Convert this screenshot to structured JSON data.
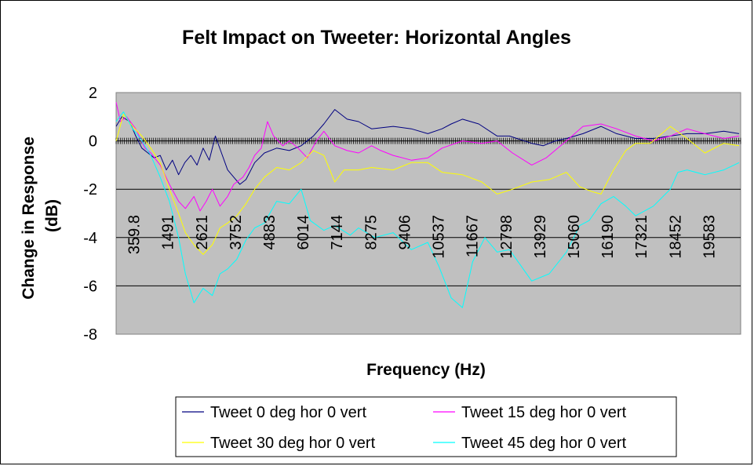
{
  "chart_data": {
    "type": "line",
    "title": "Felt Impact on Tweeter: Horizontal Angles",
    "xlabel": "Frequency (Hz)",
    "ylabel_line1": "Change in Response",
    "ylabel_line2": "(dB)",
    "ylim": [
      -8,
      2
    ],
    "yticks": [
      "2",
      "0",
      "-2",
      "-4",
      "-6",
      "-8"
    ],
    "xlim": [
      359.8,
      20750
    ],
    "xticks": [
      "359.8",
      "1491",
      "2621",
      "3752",
      "4883",
      "6014",
      "7144",
      "8275",
      "9406",
      "10537",
      "11667",
      "12798",
      "13929",
      "15060",
      "16190",
      "17321",
      "18452",
      "19583"
    ],
    "grid": "horizontal",
    "legend_position": "bottom",
    "series": [
      {
        "name": "Tweet 0 deg hor 0 vert",
        "color": "#000080",
        "x": [
          360,
          550,
          800,
          1000,
          1200,
          1400,
          1600,
          1800,
          2000,
          2200,
          2400,
          2600,
          2800,
          3000,
          3200,
          3400,
          3600,
          3800,
          4000,
          4200,
          4400,
          4600,
          4883,
          5200,
          5600,
          6014,
          6400,
          6800,
          7144,
          7500,
          7900,
          8275,
          8700,
          9406,
          10000,
          10537,
          11000,
          11300,
          11667,
          12200,
          12798,
          13200,
          13929,
          14300,
          14700,
          15060,
          15600,
          16190,
          16700,
          17321,
          17900,
          18452,
          19000,
          19583,
          20200,
          20700
        ],
        "values": [
          0.6,
          1.0,
          0.8,
          0.2,
          -0.3,
          -0.5,
          -0.7,
          -0.6,
          -1.2,
          -0.8,
          -1.4,
          -0.9,
          -0.6,
          -1.0,
          -0.3,
          -0.8,
          0.2,
          -0.5,
          -1.2,
          -1.5,
          -1.8,
          -1.6,
          -0.9,
          -0.5,
          -0.3,
          -0.4,
          -0.2,
          0.2,
          0.7,
          1.3,
          0.9,
          0.8,
          0.5,
          0.6,
          0.5,
          0.3,
          0.5,
          0.7,
          0.9,
          0.7,
          0.2,
          0.2,
          -0.1,
          -0.2,
          0.0,
          0.1,
          0.3,
          0.6,
          0.3,
          0.1,
          0.1,
          0.2,
          0.3,
          0.3,
          0.4,
          0.3
        ]
      },
      {
        "name": "Tweet 15 deg hor 0 vert",
        "color": "#FF00FF",
        "x": [
          360,
          500,
          700,
          1000,
          1300,
          1491,
          1800,
          2100,
          2400,
          2621,
          2900,
          3100,
          3300,
          3500,
          3752,
          4000,
          4200,
          4500,
          4700,
          4883,
          5100,
          5300,
          5500,
          5800,
          6014,
          6300,
          6600,
          6900,
          7144,
          7500,
          7900,
          8275,
          8700,
          9000,
          9406,
          10000,
          10537,
          11000,
          11667,
          12300,
          12798,
          13300,
          13929,
          14400,
          15060,
          15600,
          16190,
          16700,
          17321,
          17900,
          18452,
          19000,
          19583,
          20200,
          20700
        ],
        "values": [
          1.6,
          0.8,
          1.0,
          0.5,
          -0.3,
          -0.5,
          -1.0,
          -1.8,
          -2.5,
          -2.8,
          -2.3,
          -2.9,
          -2.5,
          -2.0,
          -2.7,
          -2.3,
          -1.8,
          -1.5,
          -1.1,
          -0.6,
          -0.3,
          0.8,
          0.2,
          -0.2,
          0.0,
          -0.3,
          -0.7,
          0.0,
          0.4,
          -0.2,
          -0.4,
          -0.5,
          -0.2,
          -0.4,
          -0.6,
          -0.8,
          -0.7,
          -0.3,
          0.0,
          -0.1,
          0.0,
          -0.5,
          -1.0,
          -0.7,
          0.0,
          0.6,
          0.7,
          0.5,
          0.2,
          0.0,
          0.2,
          0.5,
          0.3,
          0.1,
          0.2
        ]
      },
      {
        "name": "Tweet 30 deg hor 0 vert",
        "color": "#FFFF00",
        "x": [
          360,
          600,
          900,
          1200,
          1491,
          1800,
          2100,
          2400,
          2621,
          2900,
          3200,
          3500,
          3752,
          4000,
          4300,
          4600,
          4883,
          5200,
          5600,
          6014,
          6400,
          6800,
          7144,
          7500,
          7800,
          8275,
          8700,
          9406,
          10000,
          10537,
          11000,
          11667,
          12300,
          12798,
          13300,
          13929,
          14500,
          15060,
          15500,
          15900,
          16190,
          16600,
          17000,
          17321,
          17800,
          18452,
          19000,
          19583,
          20200,
          20700
        ],
        "values": [
          0.0,
          1.1,
          0.6,
          0.2,
          -0.3,
          -0.9,
          -2.0,
          -3.0,
          -3.8,
          -4.3,
          -4.7,
          -4.3,
          -3.6,
          -3.4,
          -3.1,
          -2.6,
          -2.0,
          -1.5,
          -1.1,
          -1.2,
          -0.9,
          -0.4,
          -0.6,
          -1.7,
          -1.2,
          -1.2,
          -1.1,
          -1.2,
          -0.9,
          -0.9,
          -1.3,
          -1.4,
          -1.7,
          -2.2,
          -2.0,
          -1.7,
          -1.6,
          -1.3,
          -1.9,
          -2.1,
          -2.2,
          -1.2,
          -0.4,
          -0.1,
          -0.1,
          0.6,
          0.1,
          -0.5,
          -0.1,
          -0.2
        ]
      },
      {
        "name": "Tweet 45 deg hor 0 vert",
        "color": "#00FFFF",
        "x": [
          360,
          600,
          900,
          1200,
          1491,
          1800,
          2100,
          2400,
          2621,
          2900,
          3200,
          3500,
          3752,
          4000,
          4300,
          4600,
          4883,
          5200,
          5600,
          6014,
          6400,
          6700,
          7144,
          7500,
          8000,
          8275,
          8800,
          9406,
          10000,
          10537,
          10900,
          11300,
          11667,
          12000,
          12400,
          12798,
          13200,
          13929,
          14500,
          15060,
          15500,
          15800,
          16190,
          16600,
          17000,
          17321,
          17900,
          18452,
          18700,
          19000,
          19583,
          20200,
          20700
        ],
        "values": [
          0.8,
          1.2,
          0.5,
          0.0,
          -0.6,
          -1.5,
          -2.5,
          -4.0,
          -5.5,
          -6.7,
          -6.1,
          -6.4,
          -5.5,
          -5.3,
          -4.9,
          -4.1,
          -3.6,
          -3.4,
          -2.5,
          -2.6,
          -2.0,
          -3.3,
          -3.7,
          -3.5,
          -3.9,
          -3.6,
          -4.0,
          -3.8,
          -4.5,
          -4.2,
          -5.2,
          -6.5,
          -6.9,
          -5.0,
          -4.0,
          -4.6,
          -4.5,
          -5.8,
          -5.5,
          -4.6,
          -3.5,
          -3.3,
          -2.6,
          -2.3,
          -2.7,
          -3.1,
          -2.7,
          -2.0,
          -1.3,
          -1.2,
          -1.4,
          -1.2,
          -0.9
        ]
      }
    ]
  }
}
